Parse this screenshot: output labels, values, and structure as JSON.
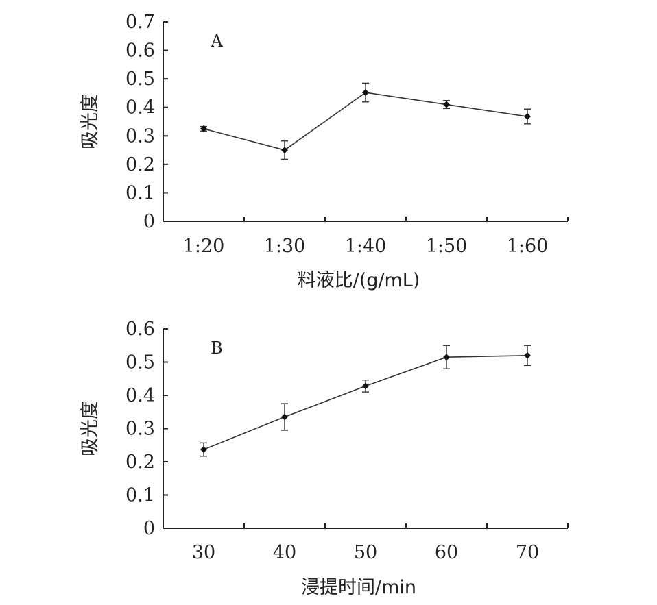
{
  "chart_data": [
    {
      "type": "line",
      "panel_label": "A",
      "categories": [
        "1:20",
        "1:30",
        "1:40",
        "1:50",
        "1:60"
      ],
      "series": [
        {
          "values": [
            0.325,
            0.25,
            0.452,
            0.41,
            0.368
          ],
          "error": [
            0.008,
            0.032,
            0.033,
            0.014,
            0.026
          ]
        }
      ],
      "xlabel": "料液比/(g/mL)",
      "ylabel": "吸光度",
      "ylim": [
        0,
        0.7
      ],
      "yticks": [
        "0",
        "0.1",
        "0.2",
        "0.3",
        "0.4",
        "0.5",
        "0.6",
        "0.7"
      ],
      "grid": false,
      "marker": "diamond",
      "color": "#222222"
    },
    {
      "type": "line",
      "panel_label": "B",
      "categories": [
        "30",
        "40",
        "50",
        "60",
        "70"
      ],
      "series": [
        {
          "values": [
            0.237,
            0.335,
            0.428,
            0.515,
            0.52
          ],
          "error": [
            0.02,
            0.04,
            0.018,
            0.035,
            0.03
          ]
        }
      ],
      "xlabel": "浸提时间/min",
      "ylabel": "吸光度",
      "ylim": [
        0,
        0.6
      ],
      "yticks": [
        "0",
        "0.1",
        "0.2",
        "0.3",
        "0.4",
        "0.5",
        "0.6"
      ],
      "grid": false,
      "marker": "diamond",
      "color": "#222222"
    }
  ]
}
